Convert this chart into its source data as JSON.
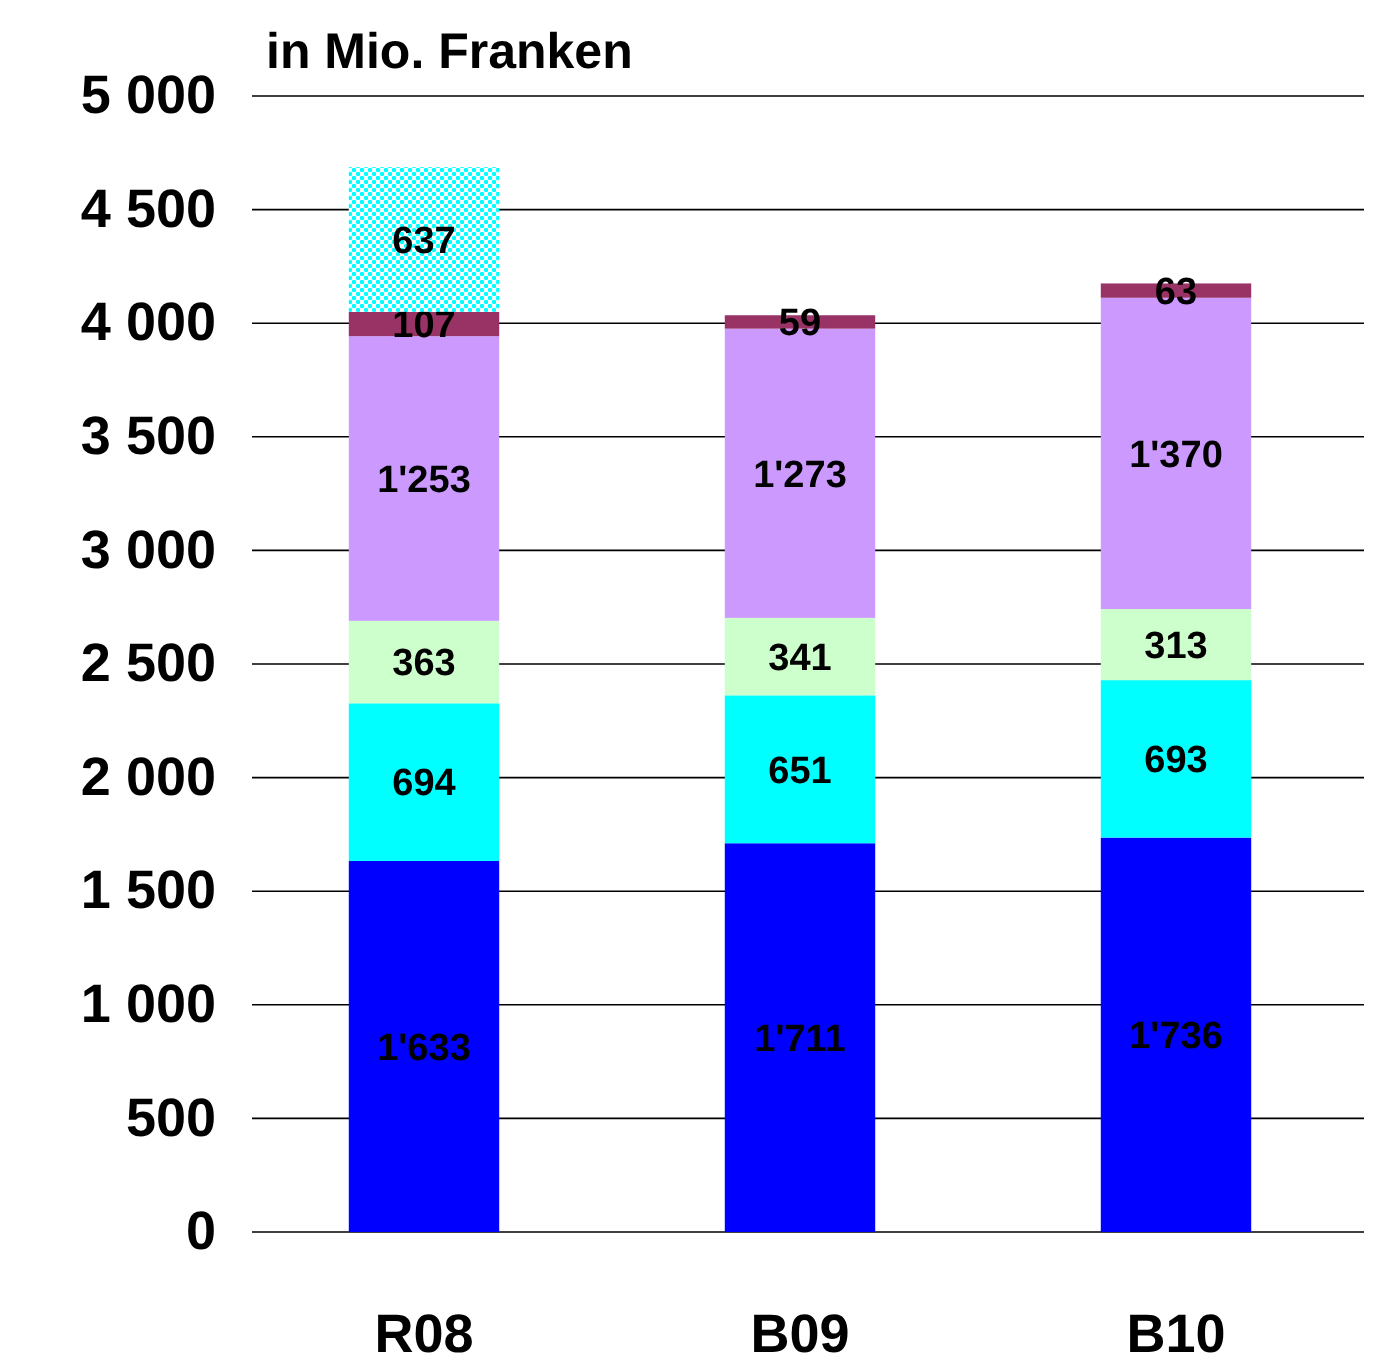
{
  "chart_data": {
    "type": "bar",
    "stacked": true,
    "ylabel": "in Mio. Franken",
    "categories": [
      "R08",
      "B09",
      "B10"
    ],
    "series": [
      {
        "color": "#0000ff",
        "values": [
          1633,
          1711,
          1736
        ],
        "value_labels": [
          "1'633",
          "1'711",
          "1'736"
        ]
      },
      {
        "color": "#00ffff",
        "values": [
          694,
          651,
          693
        ],
        "value_labels": [
          "694",
          "651",
          "693"
        ]
      },
      {
        "color": "#ccffcc",
        "values": [
          363,
          341,
          313
        ],
        "value_labels": [
          "363",
          "341",
          "313"
        ]
      },
      {
        "color": "#cc99ff",
        "values": [
          1253,
          1273,
          1370
        ],
        "value_labels": [
          "1'253",
          "1'273",
          "1'370"
        ]
      },
      {
        "color": "#993366",
        "values": [
          107,
          59,
          63
        ],
        "value_labels": [
          "107",
          "59",
          "63"
        ]
      },
      {
        "color": "#00ffff",
        "values": [
          637,
          null,
          null
        ],
        "value_labels": [
          "637",
          null,
          null
        ]
      }
    ],
    "ylim": [
      0,
      5000
    ],
    "yticks": [
      0,
      500,
      {
        "value": 1000,
        "label": "1 000"
      },
      {
        "value": 1500,
        "label": "1 500"
      },
      {
        "value": 2000,
        "label": "2 000"
      },
      {
        "value": 2500,
        "label": "2 500"
      },
      {
        "value": 3000,
        "label": "3 000"
      },
      {
        "value": 3500,
        "label": "3 500"
      },
      {
        "value": 4000,
        "label": "4 000"
      },
      {
        "value": 4500,
        "label": "4 500"
      },
      {
        "value": 5000,
        "label": "5 000"
      }
    ],
    "grid": "y"
  }
}
